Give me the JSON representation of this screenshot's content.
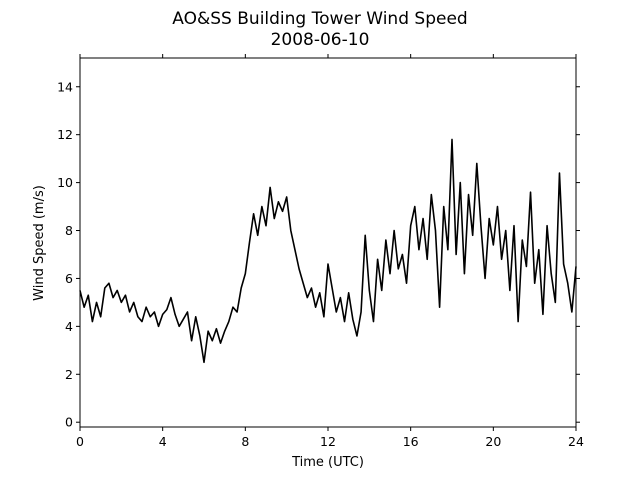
{
  "chart_data": {
    "type": "line",
    "title": "AO&SS Building Tower Wind Speed",
    "subtitle": "2008-06-10",
    "xlabel": "Time (UTC)",
    "ylabel": "Wind Speed (m/s)",
    "x": [
      0,
      0.2,
      0.4,
      0.6,
      0.8,
      1,
      1.2,
      1.4,
      1.6,
      1.8,
      2,
      2.2,
      2.4,
      2.6,
      2.8,
      3,
      3.2,
      3.4,
      3.6,
      3.8,
      4,
      4.2,
      4.4,
      4.6,
      4.8,
      5,
      5.2,
      5.4,
      5.6,
      5.8,
      6,
      6.2,
      6.4,
      6.6,
      6.8,
      7,
      7.2,
      7.4,
      7.6,
      7.8,
      8,
      8.2,
      8.4,
      8.6,
      8.8,
      9,
      9.2,
      9.4,
      9.6,
      9.8,
      10,
      10.2,
      10.4,
      10.6,
      10.8,
      11,
      11.2,
      11.4,
      11.6,
      11.8,
      12,
      12.2,
      12.4,
      12.6,
      12.8,
      13,
      13.2,
      13.4,
      13.6,
      13.8,
      14,
      14.2,
      14.4,
      14.6,
      14.8,
      15,
      15.2,
      15.4,
      15.6,
      15.8,
      16,
      16.2,
      16.4,
      16.6,
      16.8,
      17,
      17.2,
      17.4,
      17.6,
      17.8,
      18,
      18.2,
      18.4,
      18.6,
      18.8,
      19,
      19.2,
      19.4,
      19.6,
      19.8,
      20,
      20.2,
      20.4,
      20.6,
      20.8,
      21,
      21.2,
      21.4,
      21.6,
      21.8,
      22,
      22.2,
      22.4,
      22.6,
      22.8,
      23,
      23.2,
      23.4,
      23.6,
      23.8,
      24
    ],
    "series": [
      {
        "color": "#000000",
        "values": [
          5.5,
          4.8,
          5.3,
          4.2,
          5.0,
          4.4,
          5.6,
          5.8,
          5.2,
          5.5,
          5.0,
          5.3,
          4.6,
          5.0,
          4.4,
          4.2,
          4.8,
          4.4,
          4.6,
          4.0,
          4.5,
          4.7,
          5.2,
          4.5,
          4.0,
          4.3,
          4.6,
          3.4,
          4.4,
          3.6,
          2.5,
          3.8,
          3.4,
          3.9,
          3.3,
          3.8,
          4.2,
          4.8,
          4.6,
          5.6,
          6.2,
          7.5,
          8.7,
          7.8,
          9.0,
          8.2,
          9.8,
          8.5,
          9.2,
          8.8,
          9.4,
          8.0,
          7.2,
          6.4,
          5.8,
          5.2,
          5.6,
          4.8,
          5.4,
          4.4,
          6.6,
          5.6,
          4.6,
          5.2,
          4.2,
          5.4,
          4.3,
          3.6,
          4.6,
          7.8,
          5.5,
          4.2,
          6.8,
          5.5,
          7.6,
          6.2,
          8.0,
          6.4,
          7.0,
          5.8,
          8.2,
          9.0,
          7.2,
          8.5,
          6.8,
          9.5,
          8.0,
          4.8,
          9.0,
          7.2,
          11.8,
          7.0,
          10.0,
          6.2,
          9.5,
          7.8,
          10.8,
          8.2,
          6.0,
          8.5,
          7.4,
          9.0,
          6.8,
          8.0,
          5.5,
          8.2,
          4.2,
          7.6,
          6.5,
          9.6,
          5.8,
          7.2,
          4.5,
          8.2,
          6.2,
          5.0,
          10.4,
          6.6,
          5.8,
          4.6,
          6.5
        ]
      }
    ],
    "xlim": [
      0,
      24
    ],
    "xticks": [
      0,
      4,
      8,
      12,
      16,
      20,
      24
    ],
    "ylim": [
      -0.2,
      15.2
    ],
    "yticks": [
      0,
      2,
      4,
      6,
      8,
      10,
      12,
      14
    ]
  }
}
